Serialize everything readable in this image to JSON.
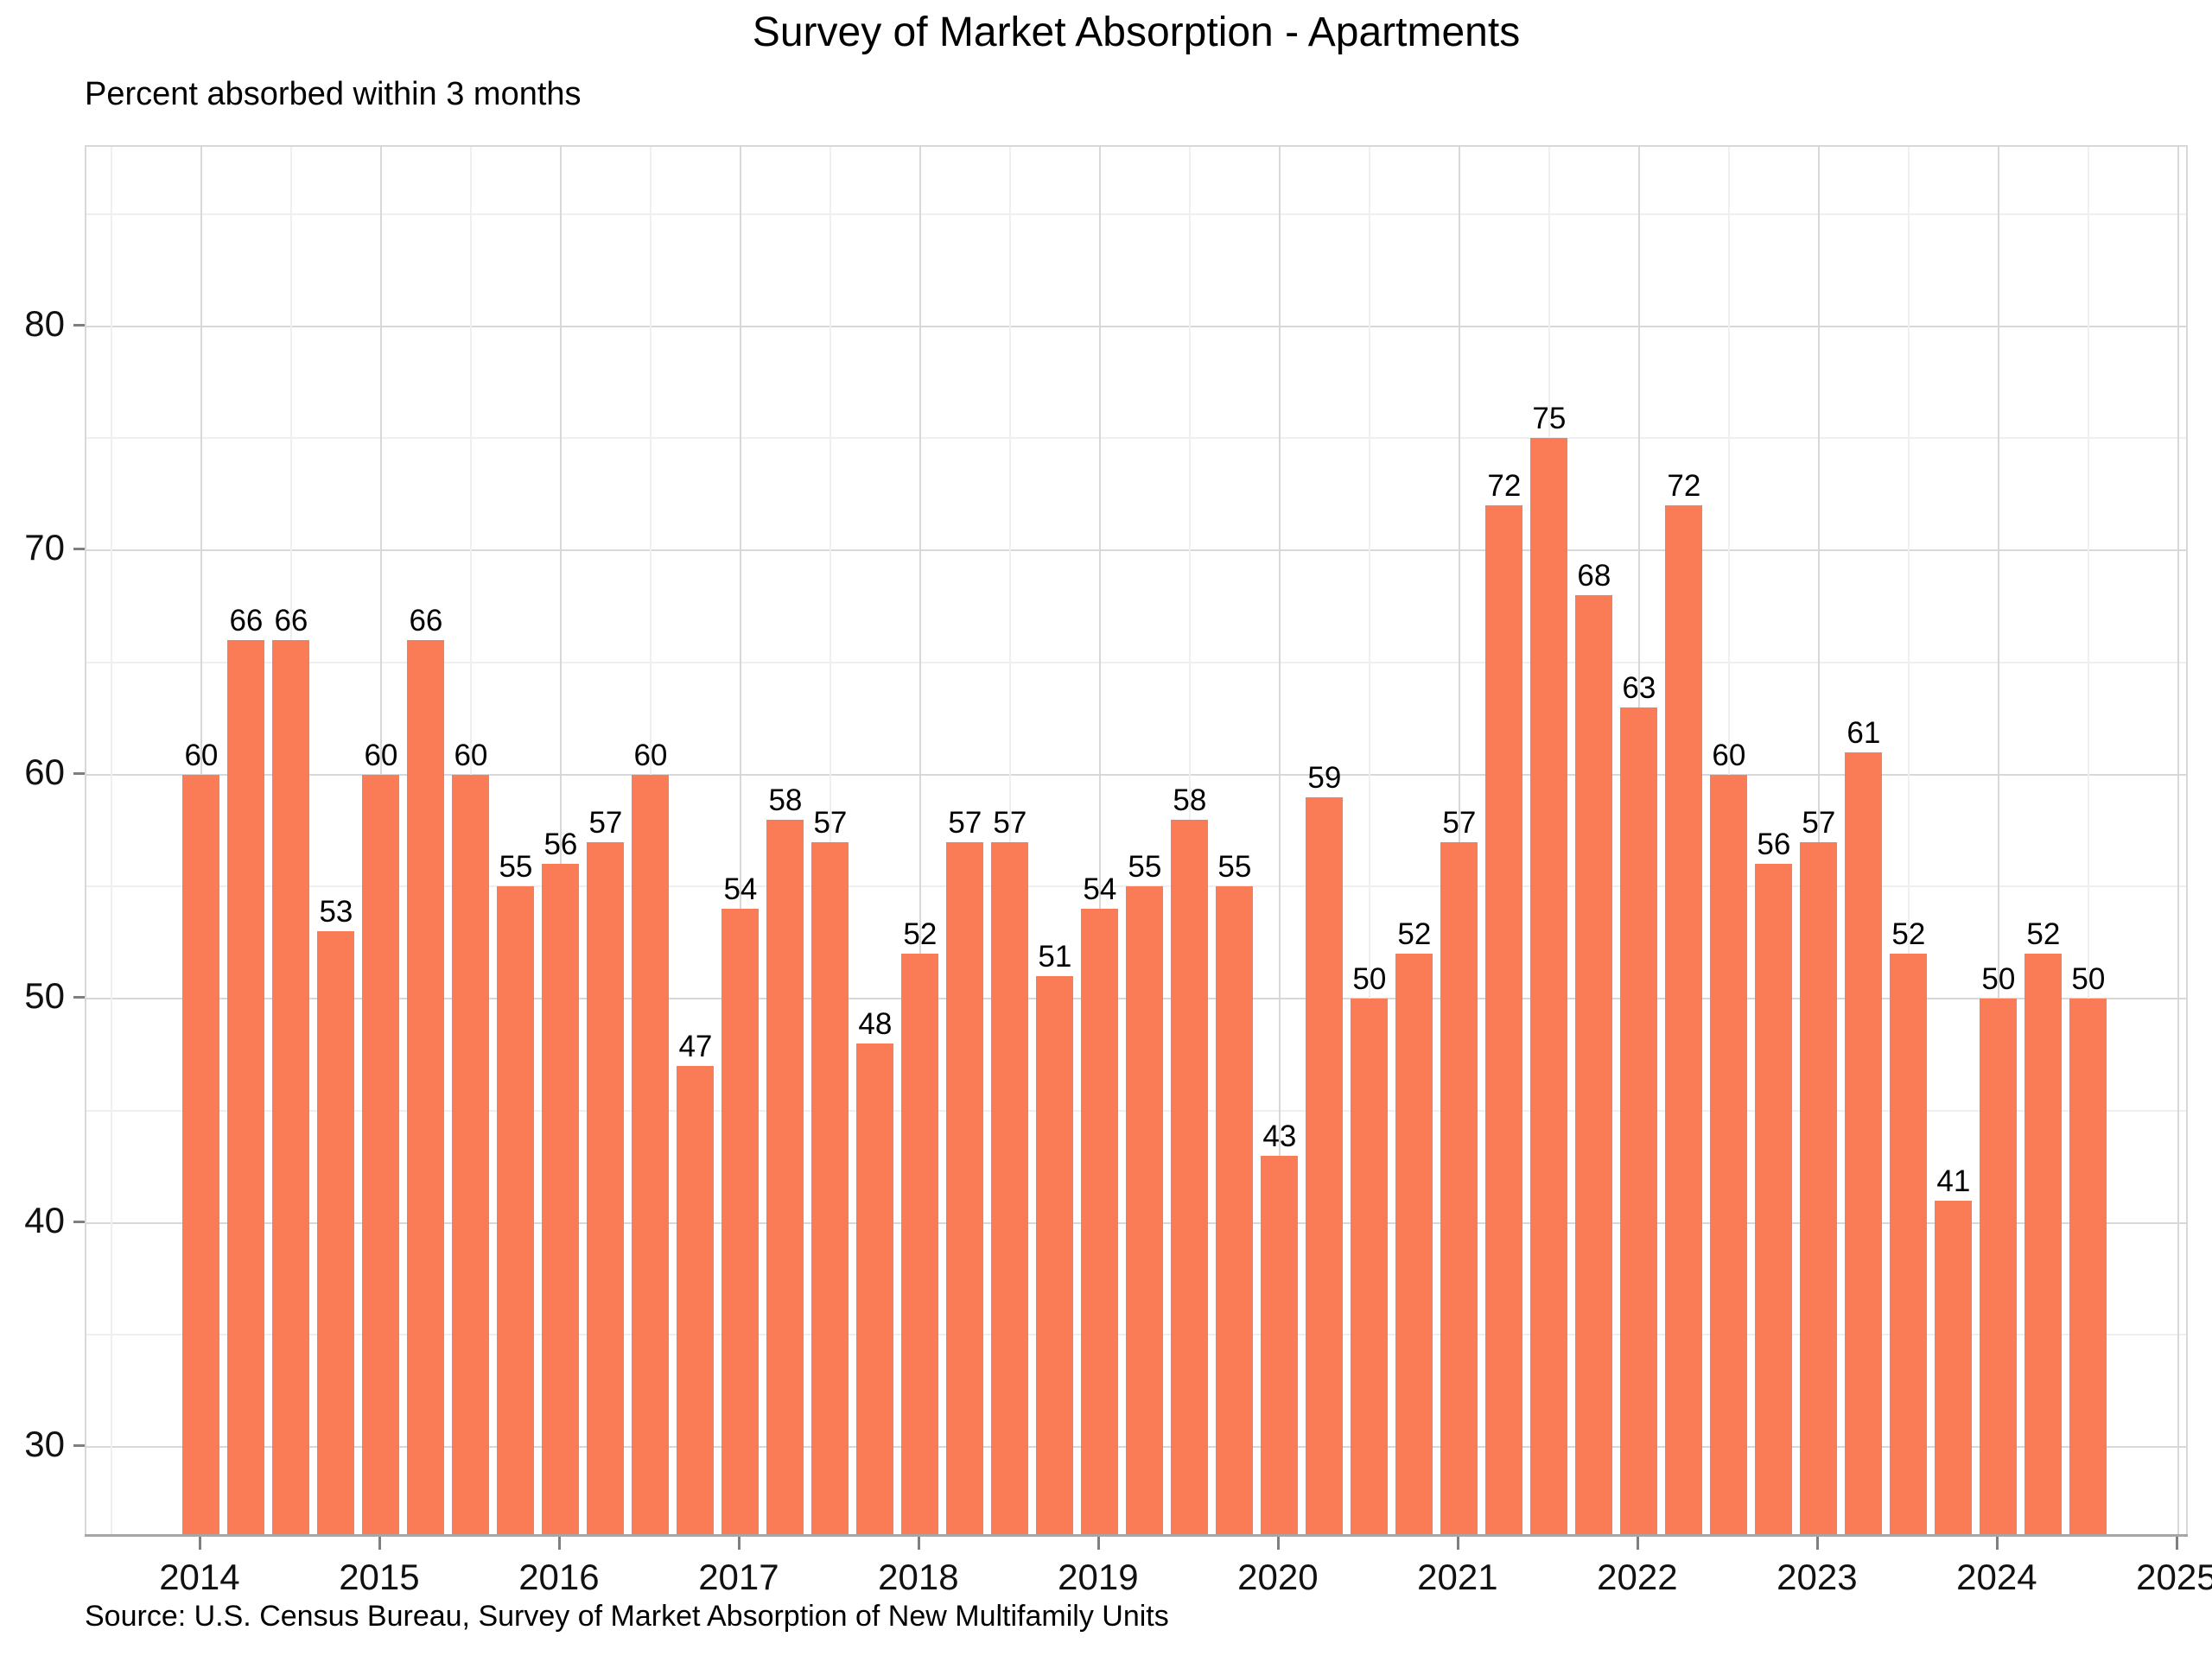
{
  "title": "Survey of Market Absorption - Apartments",
  "subtitle": "Percent absorbed within 3 months",
  "source_note": "Source: U.S. Census Bureau, Survey of Market Absorption of New Multifamily Units",
  "chart_data": {
    "type": "bar",
    "title": "Survey of Market Absorption - Apartments",
    "subtitle": "Percent absorbed within 3 months",
    "source": "Source: U.S. Census Bureau, Survey of Market Absorption of New Multifamily Units",
    "categories": [
      "2014 Q1",
      "2014 Q2",
      "2014 Q3",
      "2014 Q4",
      "2015 Q1",
      "2015 Q2",
      "2015 Q3",
      "2015 Q4",
      "2016 Q1",
      "2016 Q2",
      "2016 Q3",
      "2016 Q4",
      "2017 Q1",
      "2017 Q2",
      "2017 Q3",
      "2017 Q4",
      "2018 Q1",
      "2018 Q2",
      "2018 Q3",
      "2018 Q4",
      "2019 Q1",
      "2019 Q2",
      "2019 Q3",
      "2019 Q4",
      "2020 Q1",
      "2020 Q2",
      "2020 Q3",
      "2020 Q4",
      "2021 Q1",
      "2021 Q2",
      "2021 Q3",
      "2021 Q4",
      "2022 Q1",
      "2022 Q2",
      "2022 Q3",
      "2022 Q4",
      "2023 Q1",
      "2023 Q2",
      "2023 Q3",
      "2023 Q4",
      "2024 Q1",
      "2024 Q2",
      "2024 Q3"
    ],
    "values": [
      60,
      66,
      66,
      53,
      60,
      66,
      60,
      55,
      56,
      57,
      60,
      47,
      54,
      58,
      57,
      48,
      52,
      57,
      57,
      51,
      54,
      55,
      58,
      55,
      43,
      59,
      50,
      52,
      57,
      72,
      75,
      68,
      63,
      72,
      60,
      56,
      57,
      61,
      52,
      41,
      50,
      52,
      50
    ],
    "start_year": 2014,
    "x_tick_labels": [
      "2014",
      "2015",
      "2016",
      "2017",
      "2018",
      "2019",
      "2020",
      "2021",
      "2022",
      "2023",
      "2024",
      "2025"
    ],
    "y_tick_values": [
      30,
      40,
      50,
      60,
      70,
      80
    ],
    "y_minor_gridlines": [
      35,
      45,
      55,
      65,
      75,
      85
    ],
    "xlim": [
      2013.361,
      2025.063
    ],
    "ylim": [
      26,
      88
    ],
    "grid": "on",
    "legend_position": "none",
    "xlabel": "",
    "ylabel": "",
    "bar_color": "#F97C57",
    "colors": {
      "grid_major": "#D8D8D8",
      "grid_minor": "#EFEFEF",
      "axis_line": "#A6A6A6",
      "tick": "#7F7F7F",
      "text": "#000000",
      "background": "#FFFFFF"
    }
  }
}
